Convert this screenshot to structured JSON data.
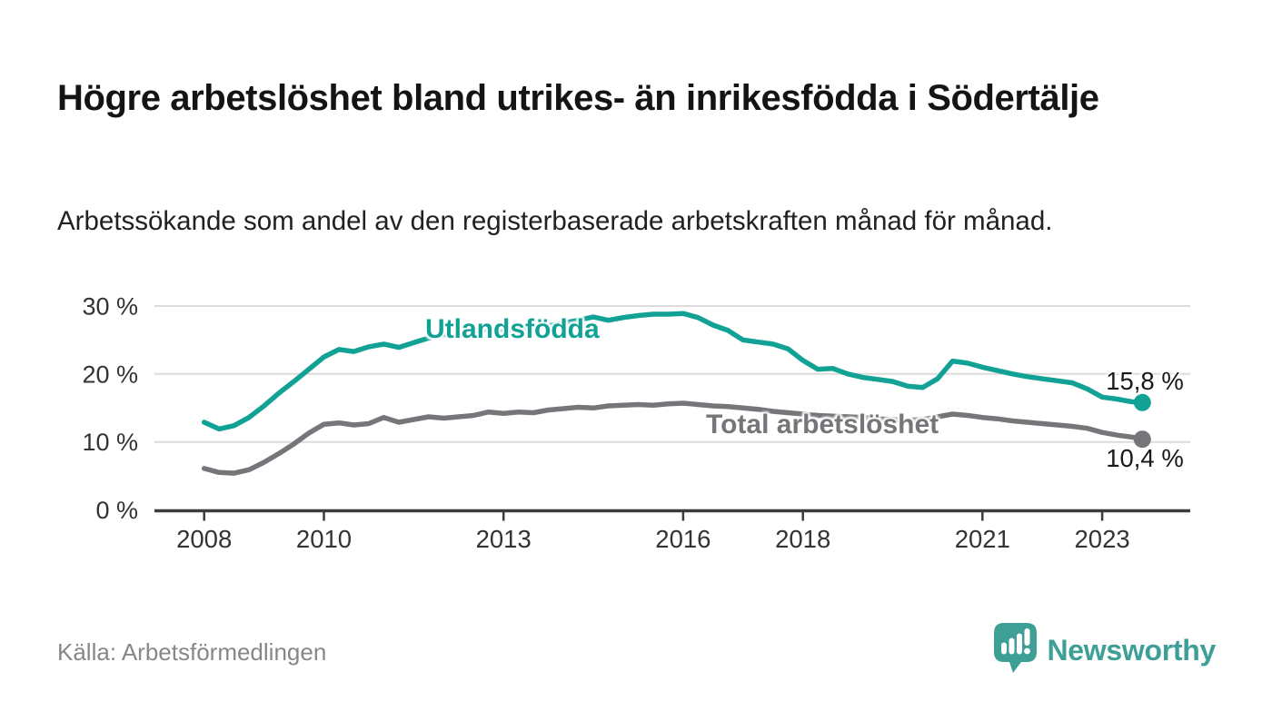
{
  "page": {
    "title": "Högre arbetslöshet bland utrikes- än inrikesfödda i Södertälje",
    "subtitle": "Arbetssökande som andel av den registerbaserade arbetskraften månad för månad.",
    "source": "Källa: Arbetsförmedlingen",
    "brand": {
      "name": "Newsworthy",
      "icon": "newsworthy-speech-bubble-chart-icon",
      "color": "#3e9f97"
    }
  },
  "chart_data": {
    "type": "line",
    "title": "Högre arbetslöshet bland utrikes- än inrikesfödda i Södertälje",
    "xlabel": "",
    "ylabel": "",
    "unit": "%",
    "grid": "horizontal",
    "xlim": [
      2007.17,
      2024.47
    ],
    "ylim": [
      0,
      32
    ],
    "x_ticks": [
      2008,
      2010,
      2013,
      2016,
      2018,
      2021,
      2023
    ],
    "x_tick_labels": [
      "2008",
      "2010",
      "2013",
      "2016",
      "2018",
      "2021",
      "2023"
    ],
    "y_ticks": [
      0,
      10,
      20,
      30
    ],
    "y_tick_labels": [
      "0 %",
      "10 %",
      "20 %",
      "30 %"
    ],
    "style": {
      "grid_color": "#dcdcdc",
      "axis_color": "#3c3c3c",
      "tick_color": "#333333"
    },
    "x": [
      2008.0,
      2008.25,
      2008.5,
      2008.75,
      2009.0,
      2009.25,
      2009.5,
      2009.75,
      2010.0,
      2010.25,
      2010.5,
      2010.75,
      2011.0,
      2011.25,
      2011.5,
      2011.75,
      2012.0,
      2012.25,
      2012.5,
      2012.75,
      2013.0,
      2013.25,
      2013.5,
      2013.75,
      2014.0,
      2014.25,
      2014.5,
      2014.75,
      2015.0,
      2015.25,
      2015.5,
      2015.75,
      2016.0,
      2016.25,
      2016.5,
      2016.75,
      2017.0,
      2017.25,
      2017.5,
      2017.75,
      2018.0,
      2018.25,
      2018.5,
      2018.75,
      2019.0,
      2019.25,
      2019.5,
      2019.75,
      2020.0,
      2020.25,
      2020.5,
      2020.75,
      2021.0,
      2021.25,
      2021.5,
      2021.75,
      2022.0,
      2022.25,
      2022.5,
      2022.75,
      2023.0,
      2023.25,
      2023.5,
      2023.67
    ],
    "series": [
      {
        "id": "utlandsfodda",
        "name": "Utlandsfödda",
        "color": "#12a295",
        "end_label": "15,8 %",
        "end_value": 15.8,
        "values": [
          12.9,
          11.9,
          12.4,
          13.6,
          15.3,
          17.2,
          18.9,
          20.7,
          22.5,
          23.6,
          23.3,
          24.0,
          24.4,
          23.9,
          24.6,
          25.3,
          25.8,
          25.6,
          26.3,
          26.6,
          26.4,
          26.6,
          26.8,
          27.1,
          27.5,
          27.9,
          28.4,
          27.9,
          28.3,
          28.6,
          28.8,
          28.8,
          28.9,
          28.3,
          27.2,
          26.4,
          25.0,
          24.7,
          24.4,
          23.7,
          22.0,
          20.7,
          20.8,
          20.0,
          19.5,
          19.2,
          18.9,
          18.2,
          18.0,
          19.3,
          21.9,
          21.6,
          21.0,
          20.5,
          20.0,
          19.6,
          19.3,
          19.0,
          18.7,
          17.8,
          16.6,
          16.3,
          15.9,
          15.8
        ]
      },
      {
        "id": "total",
        "name": "Total arbetslöshet",
        "color": "#76767a",
        "end_label": "10,4 %",
        "end_value": 10.4,
        "values": [
          6.1,
          5.5,
          5.4,
          5.9,
          7.0,
          8.3,
          9.7,
          11.3,
          12.6,
          12.8,
          12.5,
          12.7,
          13.6,
          12.9,
          13.3,
          13.7,
          13.5,
          13.7,
          13.9,
          14.4,
          14.2,
          14.4,
          14.3,
          14.7,
          14.9,
          15.1,
          15.0,
          15.3,
          15.4,
          15.5,
          15.4,
          15.6,
          15.7,
          15.5,
          15.3,
          15.2,
          15.0,
          14.8,
          14.5,
          14.3,
          14.1,
          13.9,
          13.8,
          13.7,
          13.6,
          13.4,
          13.3,
          13.2,
          13.3,
          13.7,
          14.1,
          13.9,
          13.6,
          13.4,
          13.1,
          12.9,
          12.7,
          12.5,
          12.3,
          12.0,
          11.4,
          11.0,
          10.7,
          10.4
        ]
      }
    ]
  }
}
